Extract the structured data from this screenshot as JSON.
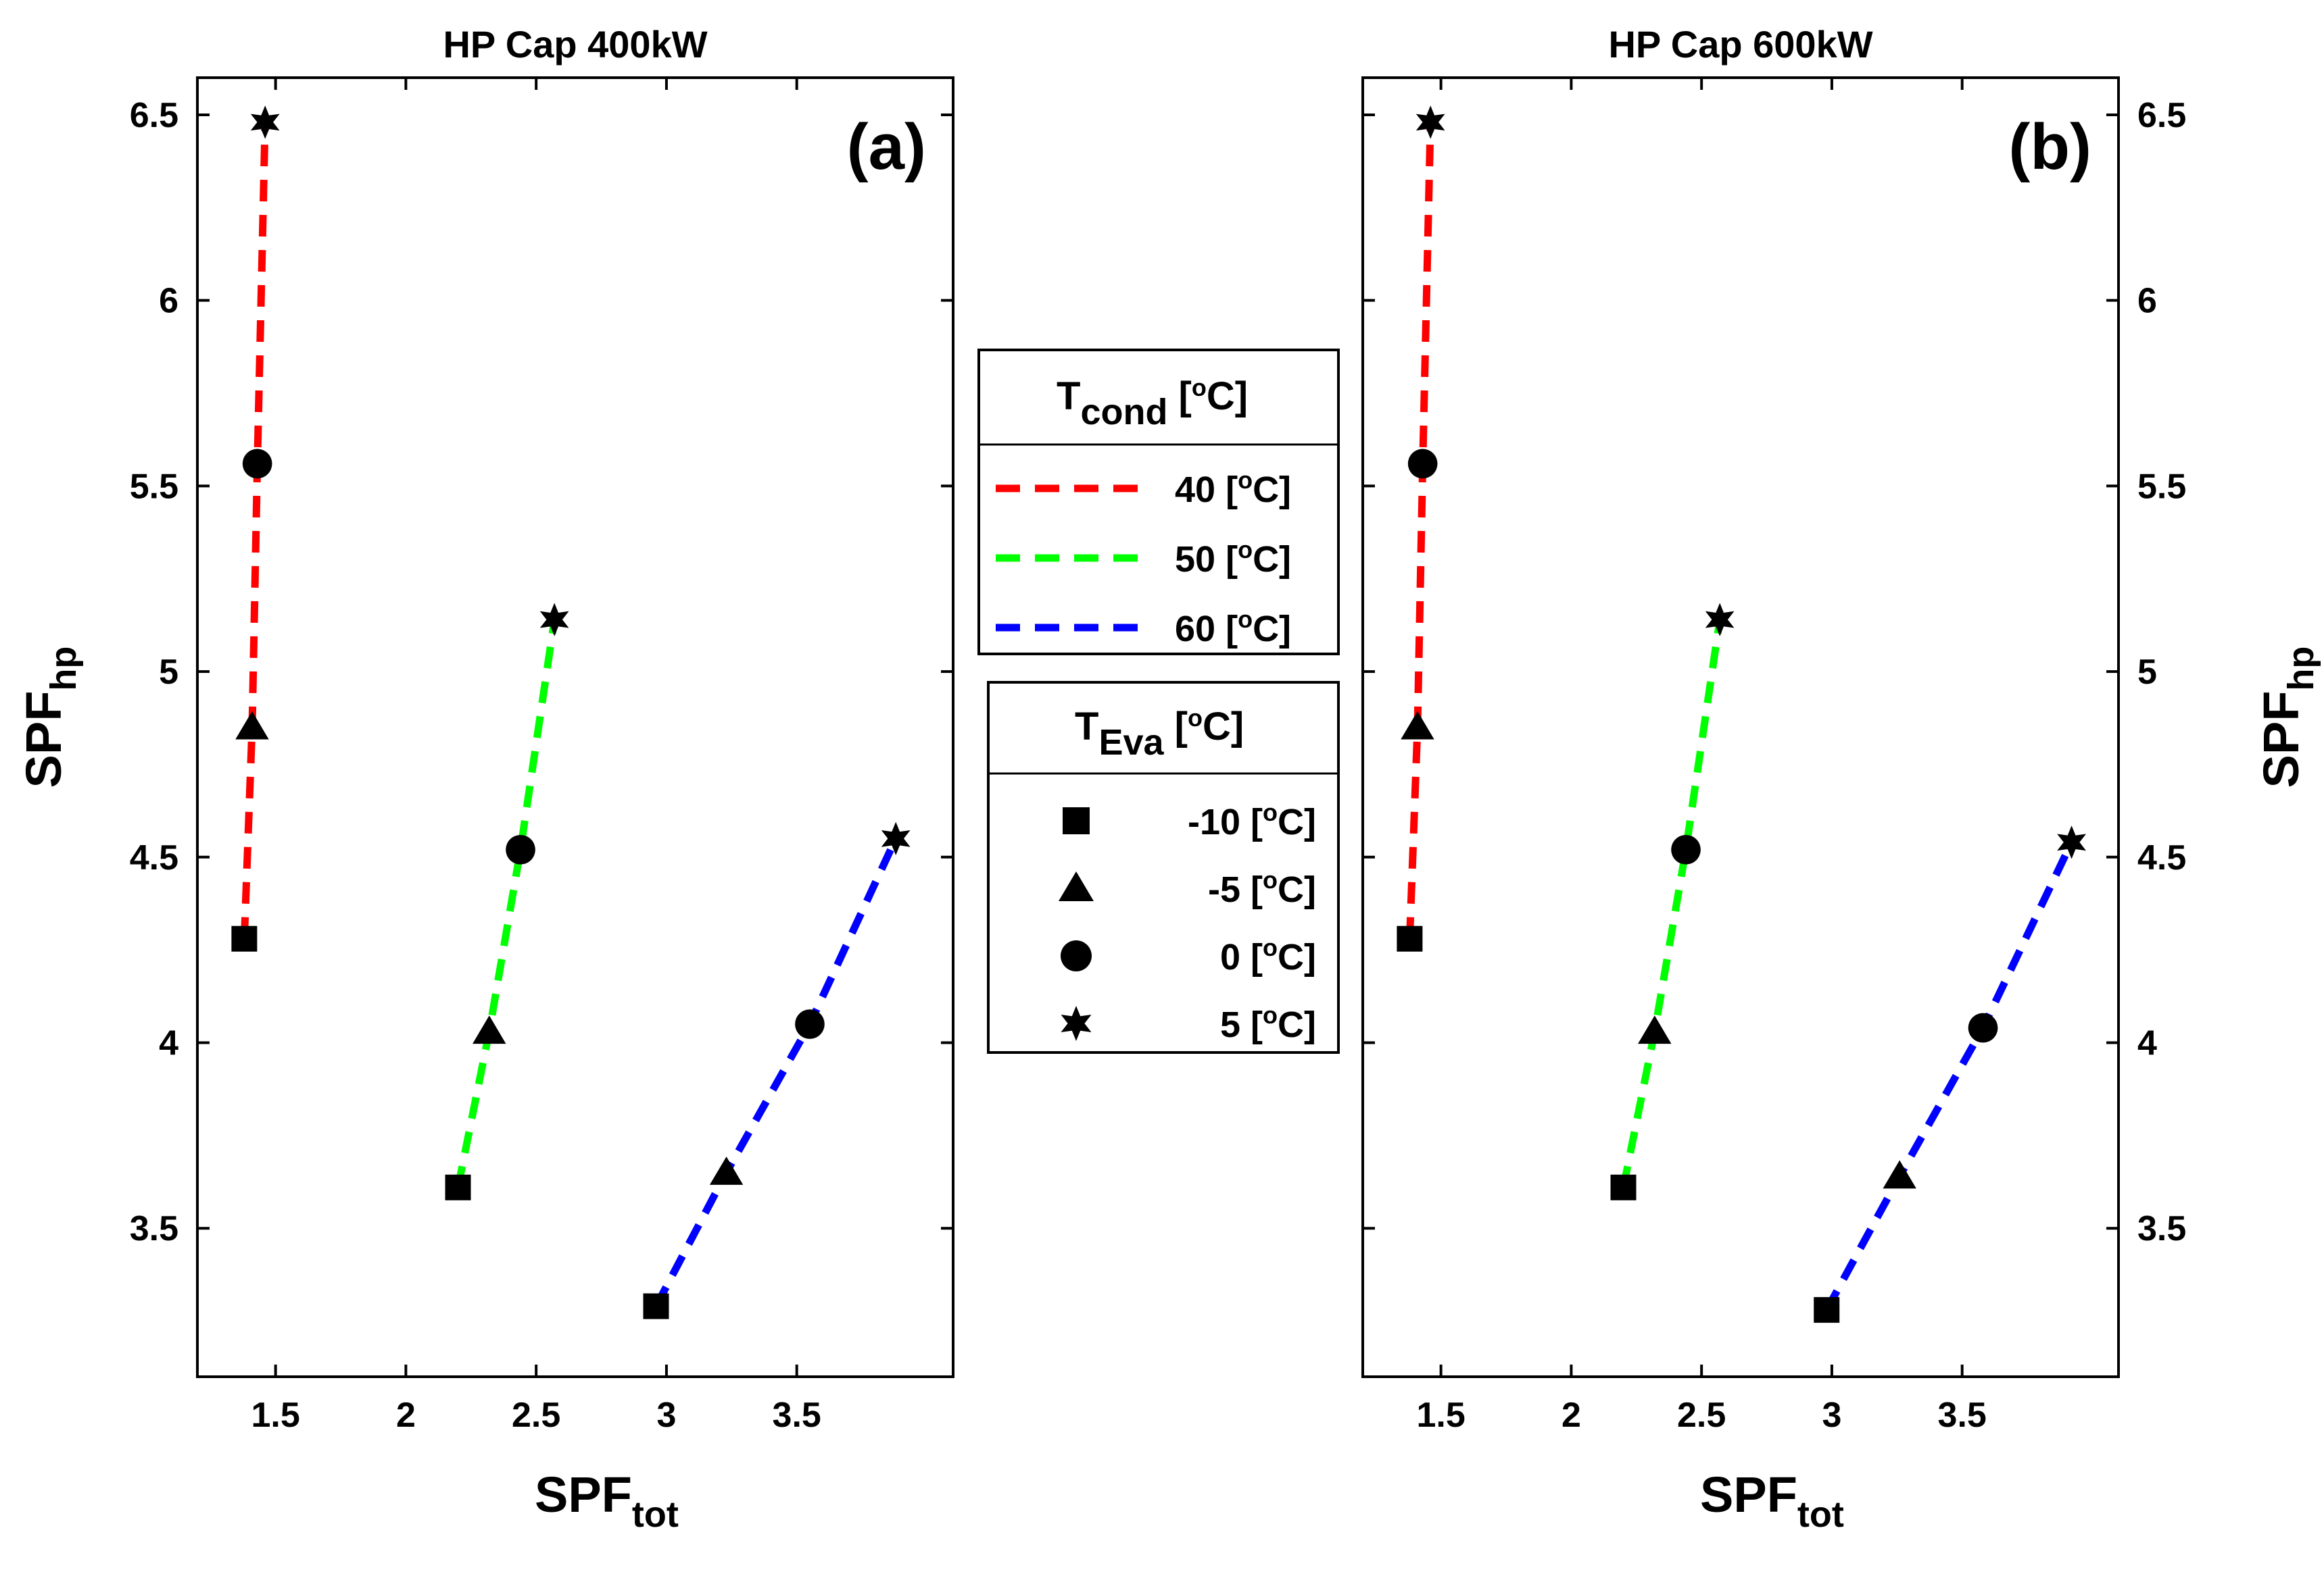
{
  "chart_data": [
    {
      "type": "line",
      "panel_label": "(a)",
      "title": "HP Cap 400kW",
      "xlabel": {
        "main": "SPF",
        "sub": "tot"
      },
      "ylabel": {
        "main": "SPF",
        "sub": "hp"
      },
      "ylabel_position": "left",
      "xlim": [
        1.2,
        4.1
      ],
      "ylim": [
        3.1,
        6.6
      ],
      "x_ticks": [
        "1.5",
        "2",
        "2.5",
        "3",
        "3.5"
      ],
      "y_ticks": [
        "3.5",
        "4",
        "4.5",
        "5",
        "5.5",
        "6",
        "6.5"
      ],
      "series": [
        {
          "name": "40 [oC]",
          "color": "#ff0000",
          "x": [
            1.38,
            1.41,
            1.43,
            1.46
          ],
          "y": [
            4.28,
            4.85,
            5.56,
            6.48
          ]
        },
        {
          "name": "50 [oC]",
          "color": "#00ff00",
          "x": [
            2.2,
            2.32,
            2.44,
            2.57
          ],
          "y": [
            3.61,
            4.03,
            4.52,
            5.14
          ]
        },
        {
          "name": "60 [oC]",
          "color": "#0000ff",
          "x": [
            2.96,
            3.23,
            3.55,
            3.88
          ],
          "y": [
            3.29,
            3.65,
            4.05,
            4.55
          ]
        }
      ]
    },
    {
      "type": "line",
      "panel_label": "(b)",
      "title": "HP Cap 600kW",
      "xlabel": {
        "main": "SPF",
        "sub": "tot"
      },
      "ylabel": {
        "main": "SPF",
        "sub": "hp"
      },
      "ylabel_position": "right",
      "xlim": [
        1.2,
        4.1
      ],
      "ylim": [
        3.1,
        6.6
      ],
      "x_ticks": [
        "1.5",
        "2",
        "2.5",
        "3",
        "3.5"
      ],
      "y_ticks": [
        "3.5",
        "4",
        "4.5",
        "5",
        "5.5",
        "6",
        "6.5"
      ],
      "series": [
        {
          "name": "40 [oC]",
          "color": "#ff0000",
          "x": [
            1.38,
            1.41,
            1.43,
            1.46
          ],
          "y": [
            4.28,
            4.85,
            5.56,
            6.48
          ]
        },
        {
          "name": "50 [oC]",
          "color": "#00ff00",
          "x": [
            2.2,
            2.32,
            2.44,
            2.57
          ],
          "y": [
            3.61,
            4.03,
            4.52,
            5.14
          ]
        },
        {
          "name": "60 [oC]",
          "color": "#0000ff",
          "x": [
            2.98,
            3.26,
            3.58,
            3.92
          ],
          "y": [
            3.28,
            3.64,
            4.04,
            4.54
          ]
        }
      ]
    }
  ],
  "markers": [
    "square",
    "triangle",
    "circle",
    "hexagram"
  ],
  "legend_cond": {
    "title": {
      "main": "T",
      "sub": "cond",
      "unit": " [oC]"
    },
    "items": [
      {
        "label": "40 [oC]",
        "color": "#ff0000"
      },
      {
        "label": "50 [oC]",
        "color": "#00ff00"
      },
      {
        "label": "60 [oC]",
        "color": "#0000ff"
      }
    ]
  },
  "legend_eva": {
    "title": {
      "main": "T",
      "sub": "Eva",
      "unit": " [oC]"
    },
    "items": [
      {
        "label": "-10 [oC]",
        "marker": "square"
      },
      {
        "label": "-5 [oC]",
        "marker": "triangle"
      },
      {
        "label": "0 [oC]",
        "marker": "circle"
      },
      {
        "label": "5 [oC]",
        "marker": "hexagram"
      }
    ]
  }
}
